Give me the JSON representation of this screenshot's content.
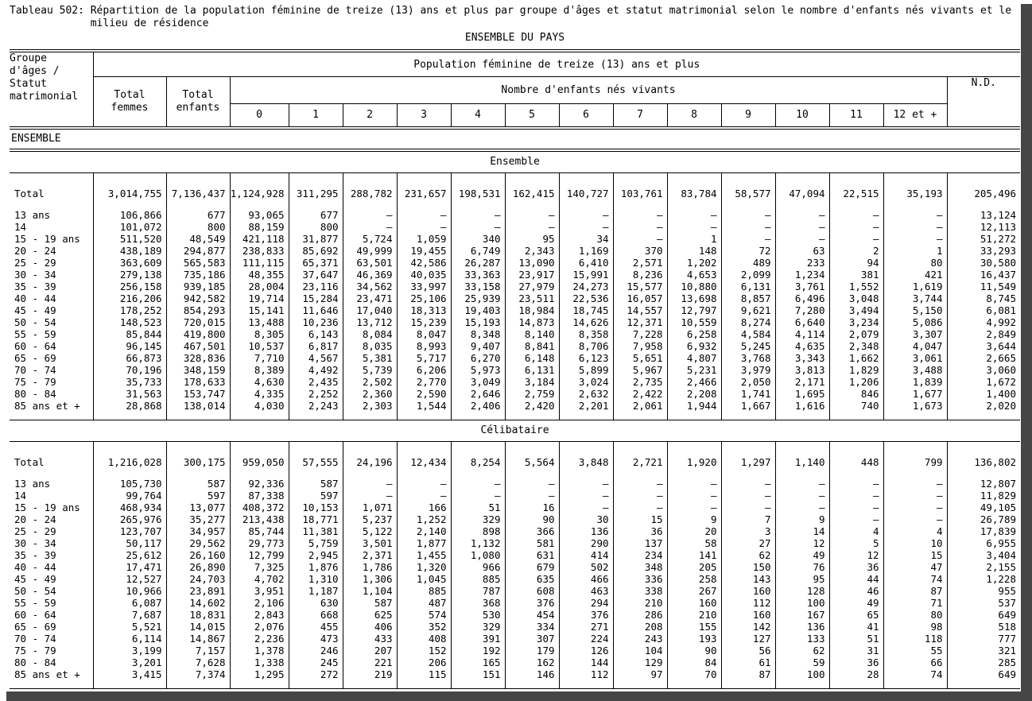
{
  "title": {
    "label": "Tableau 502:",
    "line1": "Répartition de la population féminine de treize (13) ans et plus par groupe d'âges et statut matrimonial selon le nombre d'enfants nés vivants et le",
    "line2": "milieu de résidence",
    "region": "ENSEMBLE DU PAYS"
  },
  "header": {
    "stub": "Groupe\nd'âges /\nStatut\nmatrimonial",
    "total_femmes": "Total\nfemmes",
    "total_enfants": "Total\nenfants",
    "population": "Population féminine de treize (13) ans et plus",
    "enfants_nes_vivants": "Nombre d'enfants nés vivants",
    "child_counts": [
      "0",
      "1",
      "2",
      "3",
      "4",
      "5",
      "6",
      "7",
      "8",
      "9",
      "10",
      "11",
      "12 et +"
    ],
    "nd": "N.D."
  },
  "group_label": "ENSEMBLE",
  "sections": [
    {
      "label": "Ensemble",
      "rows": [
        {
          "label": "Total",
          "values": [
            "3,014,755",
            "7,136,437",
            "1,124,928",
            "311,295",
            "288,782",
            "231,657",
            "198,531",
            "162,415",
            "140,727",
            "103,761",
            "83,784",
            "58,577",
            "47,094",
            "22,515",
            "35,193",
            "205,496"
          ]
        },
        {
          "label": "13 ans",
          "values": [
            "106,866",
            "677",
            "93,065",
            "677",
            "–",
            "–",
            "–",
            "–",
            "–",
            "–",
            "–",
            "–",
            "–",
            "–",
            "–",
            "13,124"
          ]
        },
        {
          "label": "14",
          "values": [
            "101,072",
            "800",
            "88,159",
            "800",
            "–",
            "–",
            "–",
            "–",
            "–",
            "–",
            "–",
            "–",
            "–",
            "–",
            "–",
            "12,113"
          ]
        },
        {
          "label": "15 - 19 ans",
          "values": [
            "511,520",
            "48,549",
            "421,118",
            "31,877",
            "5,724",
            "1,059",
            "340",
            "95",
            "34",
            "–",
            "1",
            "–",
            "–",
            "–",
            "–",
            "51,272"
          ]
        },
        {
          "label": "20 - 24",
          "values": [
            "438,189",
            "294,877",
            "238,833",
            "85,692",
            "49,999",
            "19,455",
            "6,749",
            "2,343",
            "1,169",
            "370",
            "148",
            "72",
            "63",
            "2",
            "1",
            "33,293"
          ]
        },
        {
          "label": "25 - 29",
          "values": [
            "363,609",
            "565,583",
            "111,115",
            "65,371",
            "63,501",
            "42,586",
            "26,287",
            "13,090",
            "6,410",
            "2,571",
            "1,202",
            "489",
            "233",
            "94",
            "80",
            "30,580"
          ]
        },
        {
          "label": "30 - 34",
          "values": [
            "279,138",
            "735,186",
            "48,355",
            "37,647",
            "46,369",
            "40,035",
            "33,363",
            "23,917",
            "15,991",
            "8,236",
            "4,653",
            "2,099",
            "1,234",
            "381",
            "421",
            "16,437"
          ]
        },
        {
          "label": "35 - 39",
          "values": [
            "256,158",
            "939,185",
            "28,004",
            "23,116",
            "34,562",
            "33,997",
            "33,158",
            "27,979",
            "24,273",
            "15,577",
            "10,880",
            "6,131",
            "3,761",
            "1,552",
            "1,619",
            "11,549"
          ]
        },
        {
          "label": "40 - 44",
          "values": [
            "216,206",
            "942,582",
            "19,714",
            "15,284",
            "23,471",
            "25,106",
            "25,939",
            "23,511",
            "22,536",
            "16,057",
            "13,698",
            "8,857",
            "6,496",
            "3,048",
            "3,744",
            "8,745"
          ]
        },
        {
          "label": "45 - 49",
          "values": [
            "178,252",
            "854,293",
            "15,141",
            "11,646",
            "17,040",
            "18,313",
            "19,403",
            "18,984",
            "18,745",
            "14,557",
            "12,797",
            "9,621",
            "7,280",
            "3,494",
            "5,150",
            "6,081"
          ]
        },
        {
          "label": "50 - 54",
          "values": [
            "148,523",
            "720,015",
            "13,488",
            "10,236",
            "13,712",
            "15,239",
            "15,193",
            "14,873",
            "14,626",
            "12,371",
            "10,559",
            "8,274",
            "6,640",
            "3,234",
            "5,086",
            "4,992"
          ]
        },
        {
          "label": "55 - 59",
          "values": [
            "85,844",
            "419,800",
            "8,305",
            "6,143",
            "8,084",
            "8,047",
            "8,348",
            "8,140",
            "8,358",
            "7,228",
            "6,258",
            "4,584",
            "4,114",
            "2,079",
            "3,307",
            "2,849"
          ]
        },
        {
          "label": "60 - 64",
          "values": [
            "96,145",
            "467,501",
            "10,537",
            "6,817",
            "8,035",
            "8,993",
            "9,407",
            "8,841",
            "8,706",
            "7,958",
            "6,932",
            "5,245",
            "4,635",
            "2,348",
            "4,047",
            "3,644"
          ]
        },
        {
          "label": "65 - 69",
          "values": [
            "66,873",
            "328,836",
            "7,710",
            "4,567",
            "5,381",
            "5,717",
            "6,270",
            "6,148",
            "6,123",
            "5,651",
            "4,807",
            "3,768",
            "3,343",
            "1,662",
            "3,061",
            "2,665"
          ]
        },
        {
          "label": "70 - 74",
          "values": [
            "70,196",
            "348,159",
            "8,389",
            "4,492",
            "5,739",
            "6,206",
            "5,973",
            "6,131",
            "5,899",
            "5,967",
            "5,231",
            "3,979",
            "3,813",
            "1,829",
            "3,488",
            "3,060"
          ]
        },
        {
          "label": "75 - 79",
          "values": [
            "35,733",
            "178,633",
            "4,630",
            "2,435",
            "2,502",
            "2,770",
            "3,049",
            "3,184",
            "3,024",
            "2,735",
            "2,466",
            "2,050",
            "2,171",
            "1,206",
            "1,839",
            "1,672"
          ]
        },
        {
          "label": "80 - 84",
          "values": [
            "31,563",
            "153,747",
            "4,335",
            "2,252",
            "2,360",
            "2,590",
            "2,646",
            "2,759",
            "2,632",
            "2,422",
            "2,208",
            "1,741",
            "1,695",
            "846",
            "1,677",
            "1,400"
          ]
        },
        {
          "label": "85 ans et +",
          "values": [
            "28,868",
            "138,014",
            "4,030",
            "2,243",
            "2,303",
            "1,544",
            "2,406",
            "2,420",
            "2,201",
            "2,061",
            "1,944",
            "1,667",
            "1,616",
            "740",
            "1,673",
            "2,020"
          ]
        }
      ]
    },
    {
      "label": "Célibataire",
      "rows": [
        {
          "label": "Total",
          "values": [
            "1,216,028",
            "300,175",
            "959,050",
            "57,555",
            "24,196",
            "12,434",
            "8,254",
            "5,564",
            "3,848",
            "2,721",
            "1,920",
            "1,297",
            "1,140",
            "448",
            "799",
            "136,802"
          ]
        },
        {
          "label": "13 ans",
          "values": [
            "105,730",
            "587",
            "92,336",
            "587",
            "–",
            "–",
            "–",
            "–",
            "–",
            "–",
            "–",
            "–",
            "–",
            "–",
            "–",
            "12,807"
          ]
        },
        {
          "label": "14",
          "values": [
            "99,764",
            "597",
            "87,338",
            "597",
            "–",
            "–",
            "–",
            "–",
            "–",
            "–",
            "–",
            "–",
            "–",
            "–",
            "–",
            "11,829"
          ]
        },
        {
          "label": "15 - 19 ans",
          "values": [
            "468,934",
            "13,077",
            "408,372",
            "10,153",
            "1,071",
            "166",
            "51",
            "16",
            "–",
            "–",
            "–",
            "–",
            "–",
            "–",
            "–",
            "49,105"
          ]
        },
        {
          "label": "20 - 24",
          "values": [
            "265,976",
            "35,277",
            "213,438",
            "18,771",
            "5,237",
            "1,252",
            "329",
            "90",
            "30",
            "15",
            "9",
            "7",
            "9",
            "–",
            "–",
            "26,789"
          ]
        },
        {
          "label": "25 - 29",
          "values": [
            "123,707",
            "34,957",
            "85,744",
            "11,381",
            "5,122",
            "2,140",
            "898",
            "366",
            "136",
            "36",
            "20",
            "3",
            "14",
            "4",
            "4",
            "17,839"
          ]
        },
        {
          "label": "30 - 34",
          "values": [
            "50,117",
            "29,562",
            "29,773",
            "5,759",
            "3,501",
            "1,877",
            "1,132",
            "581",
            "290",
            "137",
            "58",
            "27",
            "12",
            "5",
            "10",
            "6,955"
          ]
        },
        {
          "label": "35 - 39",
          "values": [
            "25,612",
            "26,160",
            "12,799",
            "2,945",
            "2,371",
            "1,455",
            "1,080",
            "631",
            "414",
            "234",
            "141",
            "62",
            "49",
            "12",
            "15",
            "3,404"
          ]
        },
        {
          "label": "40 - 44",
          "values": [
            "17,471",
            "26,890",
            "7,325",
            "1,876",
            "1,786",
            "1,320",
            "966",
            "679",
            "502",
            "348",
            "205",
            "150",
            "76",
            "36",
            "47",
            "2,155"
          ]
        },
        {
          "label": "45 - 49",
          "values": [
            "12,527",
            "24,703",
            "4,702",
            "1,310",
            "1,306",
            "1,045",
            "885",
            "635",
            "466",
            "336",
            "258",
            "143",
            "95",
            "44",
            "74",
            "1,228"
          ]
        },
        {
          "label": "50 - 54",
          "values": [
            "10,966",
            "23,891",
            "3,951",
            "1,187",
            "1,104",
            "885",
            "787",
            "608",
            "463",
            "338",
            "267",
            "160",
            "128",
            "46",
            "87",
            "955"
          ]
        },
        {
          "label": "55 - 59",
          "values": [
            "6,087",
            "14,602",
            "2,106",
            "630",
            "587",
            "487",
            "368",
            "376",
            "294",
            "210",
            "160",
            "112",
            "100",
            "49",
            "71",
            "537"
          ]
        },
        {
          "label": "60 - 64",
          "values": [
            "7,687",
            "18,831",
            "2,843",
            "668",
            "625",
            "574",
            "530",
            "454",
            "376",
            "286",
            "210",
            "160",
            "167",
            "65",
            "80",
            "649"
          ]
        },
        {
          "label": "65 - 69",
          "values": [
            "5,521",
            "14,015",
            "2,076",
            "455",
            "406",
            "352",
            "329",
            "334",
            "271",
            "208",
            "155",
            "142",
            "136",
            "41",
            "98",
            "518"
          ]
        },
        {
          "label": "70 - 74",
          "values": [
            "6,114",
            "14,867",
            "2,236",
            "473",
            "433",
            "408",
            "391",
            "307",
            "224",
            "243",
            "193",
            "127",
            "133",
            "51",
            "118",
            "777"
          ]
        },
        {
          "label": "75 - 79",
          "values": [
            "3,199",
            "7,157",
            "1,378",
            "246",
            "207",
            "152",
            "192",
            "179",
            "126",
            "104",
            "90",
            "56",
            "62",
            "31",
            "55",
            "321"
          ]
        },
        {
          "label": "80 - 84",
          "values": [
            "3,201",
            "7,628",
            "1,338",
            "245",
            "221",
            "206",
            "165",
            "162",
            "144",
            "129",
            "84",
            "61",
            "59",
            "36",
            "66",
            "285"
          ]
        },
        {
          "label": "85 ans et +",
          "values": [
            "3,415",
            "7,374",
            "1,295",
            "272",
            "219",
            "115",
            "151",
            "146",
            "112",
            "97",
            "70",
            "87",
            "100",
            "28",
            "74",
            "649"
          ]
        }
      ]
    }
  ]
}
